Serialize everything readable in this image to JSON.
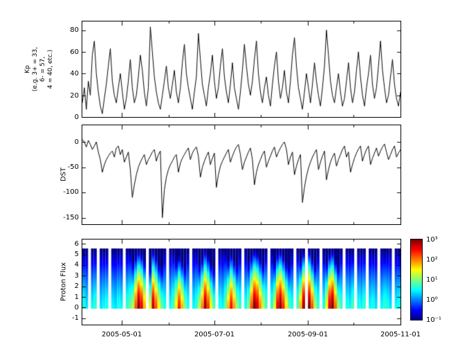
{
  "figure": {
    "background": "#ffffff",
    "axis_color": "#000000"
  },
  "x_axis": {
    "start_date": "2005-04-05",
    "end_date": "2005-11-01",
    "total_days": 210,
    "tick_positions_days": [
      26,
      87,
      149,
      210
    ],
    "minor_tick_days": [
      57,
      118,
      179
    ],
    "tick_labels": [
      "2005-05-01",
      "2005-07-01",
      "2005-09-01",
      "2005-11-01"
    ]
  },
  "chart_data": [
    {
      "type": "line",
      "ylabel": "Kp\n(e.g. 3+ = 33,\n6- = 57,\n4 = 40, etc.)",
      "ylim": [
        0,
        88
      ],
      "yticks": [
        80,
        60,
        40,
        20,
        0
      ],
      "color": "#000000",
      "values": [
        13,
        27,
        7,
        33,
        20,
        57,
        70,
        40,
        23,
        10,
        3,
        17,
        30,
        47,
        63,
        33,
        20,
        13,
        27,
        40,
        23,
        7,
        17,
        33,
        53,
        27,
        13,
        20,
        37,
        57,
        43,
        23,
        10,
        27,
        83,
        60,
        37,
        23,
        13,
        7,
        20,
        33,
        47,
        27,
        17,
        30,
        43,
        23,
        13,
        27,
        50,
        67,
        40,
        27,
        17,
        7,
        23,
        37,
        77,
        53,
        30,
        20,
        10,
        27,
        40,
        57,
        33,
        17,
        27,
        47,
        63,
        37,
        23,
        13,
        30,
        50,
        27,
        17,
        7,
        23,
        43,
        67,
        47,
        30,
        20,
        33,
        53,
        70,
        40,
        23,
        13,
        27,
        37,
        20,
        10,
        30,
        47,
        60,
        33,
        17,
        27,
        43,
        23,
        13,
        33,
        57,
        73,
        47,
        27,
        17,
        7,
        23,
        40,
        27,
        13,
        30,
        50,
        33,
        20,
        10,
        27,
        47,
        80,
        57,
        33,
        20,
        13,
        27,
        40,
        23,
        10,
        17,
        33,
        50,
        27,
        13,
        23,
        43,
        60,
        37,
        20,
        10,
        27,
        40,
        57,
        30,
        17,
        27,
        47,
        70,
        43,
        27,
        13,
        20,
        37,
        53,
        30,
        17,
        10,
        23
      ]
    },
    {
      "type": "line",
      "ylabel": "DST",
      "ylim": [
        -163,
        33
      ],
      "yticks": [
        0,
        -50,
        -100,
        -150
      ],
      "color": "#000000",
      "values": [
        5,
        0,
        -10,
        3,
        -5,
        -15,
        -8,
        0,
        -20,
        -35,
        -60,
        -45,
        -35,
        -28,
        -22,
        -18,
        -30,
        -12,
        -8,
        -25,
        -15,
        -40,
        -30,
        -20,
        -55,
        -110,
        -85,
        -65,
        -50,
        -40,
        -32,
        -25,
        -45,
        -35,
        -28,
        -20,
        -15,
        -38,
        -25,
        -18,
        -150,
        -95,
        -70,
        -55,
        -45,
        -38,
        -30,
        -25,
        -60,
        -42,
        -32,
        -25,
        -18,
        -12,
        -35,
        -22,
        -15,
        -10,
        -28,
        -70,
        -50,
        -38,
        -28,
        -20,
        -45,
        -32,
        -22,
        -90,
        -65,
        -48,
        -38,
        -30,
        -22,
        -15,
        -40,
        -28,
        -18,
        -10,
        -5,
        -25,
        -55,
        -40,
        -30,
        -20,
        -12,
        -35,
        -85,
        -60,
        -45,
        -35,
        -25,
        -18,
        -50,
        -38,
        -28,
        -18,
        -10,
        -30,
        -20,
        -12,
        -5,
        0,
        -15,
        -45,
        -30,
        -20,
        -65,
        -48,
        -35,
        -25,
        -120,
        -90,
        -68,
        -52,
        -40,
        -30,
        -22,
        -15,
        -55,
        -40,
        -28,
        -18,
        -75,
        -55,
        -40,
        -30,
        -22,
        -48,
        -35,
        -25,
        -15,
        -8,
        -30,
        -20,
        -60,
        -45,
        -32,
        -22,
        -14,
        -8,
        -38,
        -25,
        -15,
        -8,
        -45,
        -32,
        -22,
        -12,
        -28,
        -18,
        -10,
        -4,
        -20,
        -35,
        -25,
        -15,
        -8,
        -30,
        -22,
        -15
      ]
    },
    {
      "type": "heatmap",
      "ylabel": "Proton Flux",
      "ylim": [
        -1.6,
        6.4
      ],
      "yticks": [
        6,
        5,
        4,
        3,
        2,
        1,
        0,
        -1
      ],
      "y_data_range": [
        0,
        5.5
      ],
      "value_scale": "log10",
      "colormap": "jet",
      "colorbar_range_log": [
        -1,
        3
      ],
      "colorbar_ticks": [
        "10³",
        "10²",
        "10¹",
        "10⁰",
        "10⁻¹"
      ],
      "profile_exponent": 1.4,
      "columns": [
        [
          0.6,
          5.5
        ],
        [
          0.4,
          5.5
        ],
        null,
        [
          0.5,
          5.5
        ],
        [
          0.7,
          5.5
        ],
        null,
        [
          0.4,
          5.5
        ],
        [
          0.5,
          5.5
        ],
        [
          0.6,
          5.5
        ],
        null,
        [
          0.5,
          5.5
        ],
        [
          0.4,
          5.5
        ],
        [
          0.6,
          5.5
        ],
        [
          0.5,
          5.5
        ],
        null,
        [
          0.7,
          5.5
        ],
        [
          0.9,
          5.5
        ],
        [
          1.2,
          4.5
        ],
        [
          2.2,
          5
        ],
        [
          3,
          5.5
        ],
        [
          2.6,
          5.2
        ],
        [
          1.8,
          4.5
        ],
        null,
        [
          1.4,
          4
        ],
        [
          2.8,
          5.5
        ],
        [
          2.2,
          5
        ],
        [
          1.5,
          4.2
        ],
        [
          0.9,
          4
        ],
        [
          0.6,
          5.5
        ],
        null,
        [
          0.5,
          5.5
        ],
        [
          0.8,
          5.5
        ],
        [
          1.6,
          4.5
        ],
        [
          2.4,
          5
        ],
        [
          1.8,
          4.5
        ],
        [
          1,
          4
        ],
        [
          0.6,
          5.5
        ],
        null,
        [
          0.5,
          5.5
        ],
        [
          0.7,
          5.5
        ],
        [
          1.2,
          4.2
        ],
        [
          2,
          4.8
        ],
        [
          2.9,
          5.5
        ],
        [
          2.3,
          5
        ],
        [
          1.5,
          4.3
        ],
        [
          0.8,
          4
        ],
        null,
        [
          0.6,
          5.5
        ],
        [
          0.5,
          5.5
        ],
        [
          0.9,
          5.5
        ],
        [
          1.8,
          4.6
        ],
        [
          2.5,
          5.2
        ],
        [
          1.9,
          4.6
        ],
        [
          1.1,
          4.2
        ],
        [
          0.7,
          5.5
        ],
        null,
        [
          0.6,
          5.5
        ],
        [
          1,
          4.5
        ],
        [
          2.2,
          5
        ],
        [
          3,
          5.5
        ],
        [
          2.7,
          5.3
        ],
        [
          2,
          4.8
        ],
        [
          1.3,
          4.2
        ],
        [
          0.8,
          5.5
        ],
        null,
        [
          0.7,
          5.5
        ],
        [
          1.4,
          4.4
        ],
        [
          2.6,
          5.2
        ],
        [
          3,
          5.5
        ],
        [
          2.4,
          5
        ],
        [
          1.6,
          4.4
        ],
        [
          0.9,
          4.2
        ],
        [
          0.6,
          5.5
        ],
        null,
        [
          0.8,
          5.5
        ],
        [
          1.8,
          4.6
        ],
        [
          2.9,
          5.4
        ],
        null,
        [
          3,
          5.5
        ],
        [
          2.2,
          4.8
        ],
        [
          1.2,
          4.2
        ],
        [
          0.7,
          5.5
        ],
        null,
        [
          0.6,
          5.5
        ],
        [
          1.5,
          4.4
        ],
        [
          2.7,
          5.2
        ],
        [
          3,
          5.5
        ],
        [
          2.1,
          4.7
        ],
        [
          1.1,
          4.1
        ],
        [
          0.7,
          5.5
        ],
        null,
        [
          0.6,
          5.5
        ],
        [
          0.5,
          5.5
        ],
        [
          0.8,
          5.5
        ],
        null,
        [
          0.6,
          5.5
        ],
        [
          0.5,
          5.5
        ],
        [
          0.7,
          5.5
        ],
        null,
        [
          0.5,
          5.5
        ],
        [
          0.6,
          5.5
        ],
        [
          0.4,
          5.5
        ],
        null,
        [
          0.5,
          5.5
        ],
        [
          0.7,
          5.5
        ],
        [
          0.6,
          5.5
        ],
        [
          0.4,
          5.5
        ],
        null,
        [
          0.5,
          5.5
        ],
        [
          0.6,
          5.5
        ]
      ]
    }
  ]
}
